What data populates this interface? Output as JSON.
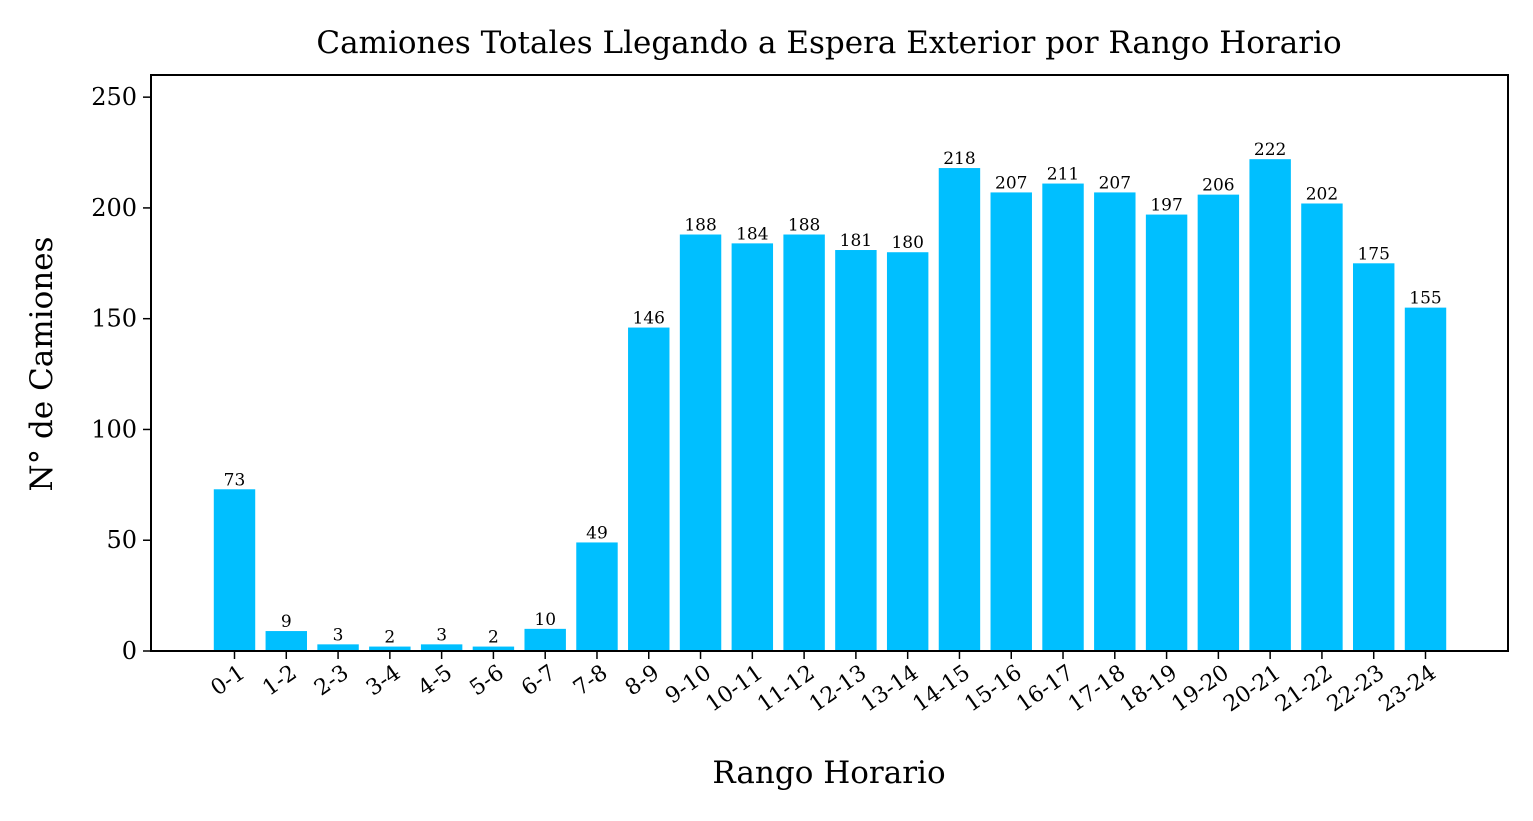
{
  "chart_data": {
    "type": "bar",
    "title": "Camiones Totales Llegando a Espera Exterior por Rango Horario",
    "xlabel": "Rango Horario",
    "ylabel": "N° de Camiones",
    "categories": [
      "0-1",
      "1-2",
      "2-3",
      "3-4",
      "4-5",
      "5-6",
      "6-7",
      "7-8",
      "8-9",
      "9-10",
      "10-11",
      "11-12",
      "12-13",
      "13-14",
      "14-15",
      "15-16",
      "16-17",
      "17-18",
      "18-19",
      "19-20",
      "20-21",
      "21-22",
      "22-23",
      "23-24"
    ],
    "values": [
      73,
      9,
      3,
      2,
      3,
      2,
      10,
      49,
      146,
      188,
      184,
      188,
      181,
      180,
      218,
      207,
      211,
      207,
      197,
      206,
      222,
      202,
      175,
      155
    ],
    "ylim": [
      0,
      260
    ],
    "yticks": [
      0,
      50,
      100,
      150,
      200,
      250
    ],
    "bar_color": "#00bfff",
    "grid": false,
    "xtick_rotation": "35 degrees"
  }
}
